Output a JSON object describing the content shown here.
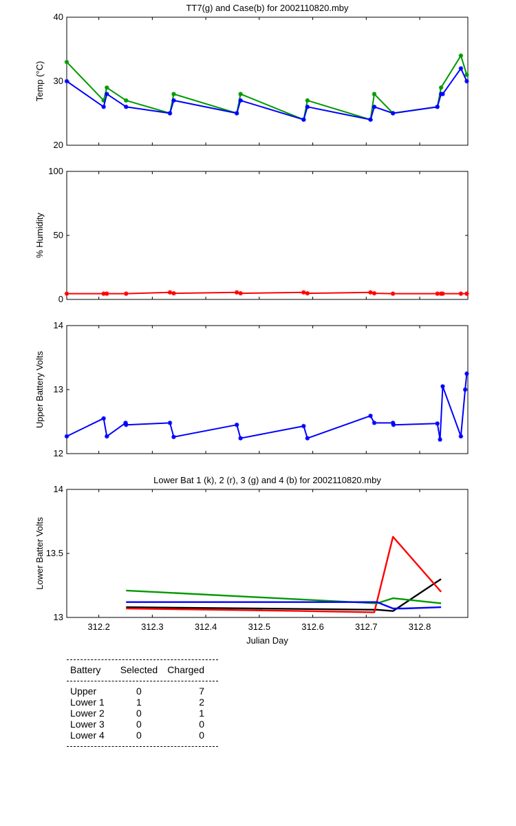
{
  "chart_data": [
    {
      "type": "line",
      "title": "TT7(g) and Case(b) for 2002110820.mby",
      "xlabel": "",
      "ylabel": "Temp  (°C)",
      "xlim": [
        312.14,
        312.89
      ],
      "ylim": [
        20,
        40
      ],
      "yticks": [
        "20",
        "30",
        "40"
      ],
      "x_tick_values": [
        312.2,
        312.3,
        312.4,
        312.5,
        312.6,
        312.7,
        312.8
      ],
      "series": [
        {
          "color": "#009900",
          "marker": "*",
          "x": [
            312.14,
            312.209,
            312.215,
            312.251,
            312.333,
            312.34,
            312.458,
            312.465,
            312.583,
            312.59,
            312.708,
            312.715,
            312.75,
            312.833,
            312.84,
            312.877,
            312.888
          ],
          "y": [
            33,
            27,
            29,
            27,
            25,
            28,
            25,
            28,
            24,
            27,
            24,
            28,
            25,
            26,
            29,
            34,
            31
          ]
        },
        {
          "color": "#0000ff",
          "marker": "*",
          "x": [
            312.14,
            312.209,
            312.215,
            312.251,
            312.333,
            312.34,
            312.458,
            312.465,
            312.583,
            312.59,
            312.708,
            312.715,
            312.75,
            312.833,
            312.84,
            312.843,
            312.877,
            312.888
          ],
          "y": [
            30,
            26,
            28,
            26,
            25,
            27,
            25,
            27,
            24,
            26,
            24,
            26,
            25,
            26,
            28,
            28,
            32,
            30
          ]
        }
      ]
    },
    {
      "type": "line",
      "title": "",
      "xlabel": "",
      "ylabel": "% Humidity",
      "xlim": [
        312.14,
        312.89
      ],
      "ylim": [
        0,
        100
      ],
      "yticks": [
        "0",
        "50",
        "100"
      ],
      "x_tick_values": [
        312.2,
        312.3,
        312.4,
        312.5,
        312.6,
        312.7,
        312.8
      ],
      "series": [
        {
          "color": "#ff0000",
          "marker": "*",
          "x": [
            312.14,
            312.209,
            312.215,
            312.251,
            312.333,
            312.34,
            312.458,
            312.465,
            312.583,
            312.59,
            312.708,
            312.715,
            312.75,
            312.833,
            312.84,
            312.843,
            312.877,
            312.888
          ],
          "y": [
            4.5,
            4.5,
            4.5,
            4.5,
            5.5,
            4.8,
            5.5,
            4.8,
            5.5,
            4.8,
            5.5,
            4.8,
            4.5,
            4.5,
            4.5,
            4.5,
            4.5,
            4.5
          ]
        }
      ]
    },
    {
      "type": "line",
      "title": "",
      "xlabel": "",
      "ylabel": "Upper Battery Volts",
      "xlim": [
        312.14,
        312.89
      ],
      "ylim": [
        12,
        14
      ],
      "yticks": [
        "12",
        "13",
        "14"
      ],
      "x_tick_values": [
        312.2,
        312.3,
        312.4,
        312.5,
        312.6,
        312.7,
        312.8
      ],
      "series": [
        {
          "color": "#0000ff",
          "marker": "*",
          "x": [
            312.14,
            312.209,
            312.215,
            312.25,
            312.251,
            312.333,
            312.34,
            312.458,
            312.465,
            312.583,
            312.59,
            312.708,
            312.715,
            312.75,
            312.751,
            312.833,
            312.838,
            312.843,
            312.877,
            312.885,
            312.888
          ],
          "y": [
            12.27,
            12.55,
            12.27,
            12.48,
            12.45,
            12.48,
            12.26,
            12.45,
            12.24,
            12.43,
            12.24,
            12.59,
            12.48,
            12.48,
            12.45,
            12.47,
            12.22,
            13.05,
            12.27,
            13.0,
            13.25
          ]
        }
      ]
    },
    {
      "type": "line",
      "title": "Lower Bat 1 (k), 2 (r), 3 (g) and 4 (b) for 2002110820.mby",
      "xlabel": "Julian Day",
      "ylabel": "Lower Batter Volts",
      "xlim": [
        312.14,
        312.89
      ],
      "ylim": [
        13,
        14
      ],
      "yticks": [
        "13",
        "13.5",
        "14"
      ],
      "xticks": [
        "312.2",
        "312.3",
        "312.4",
        "312.5",
        "312.6",
        "312.7",
        "312.8"
      ],
      "x_tick_values": [
        312.2,
        312.3,
        312.4,
        312.5,
        312.6,
        312.7,
        312.8
      ],
      "series": [
        {
          "color": "#000000",
          "x": [
            312.251,
            312.72,
            312.75,
            312.84
          ],
          "y": [
            13.08,
            13.06,
            13.05,
            13.3
          ]
        },
        {
          "color": "#ff0000",
          "x": [
            312.251,
            312.583,
            312.715,
            312.75,
            312.84
          ],
          "y": [
            13.07,
            13.05,
            13.04,
            13.63,
            13.2
          ]
        },
        {
          "color": "#009900",
          "x": [
            312.251,
            312.72,
            312.75,
            312.84
          ],
          "y": [
            13.21,
            13.11,
            13.15,
            13.11
          ]
        },
        {
          "color": "#0000ff",
          "x": [
            312.251,
            312.72,
            312.75,
            312.77,
            312.84
          ],
          "y": [
            13.12,
            13.12,
            13.07,
            13.07,
            13.08
          ]
        }
      ]
    }
  ],
  "table": {
    "headers": [
      "Battery",
      "Selected",
      "Charged"
    ],
    "rows": [
      [
        "Upper",
        "0",
        "7"
      ],
      [
        "Lower 1",
        "1",
        "2"
      ],
      [
        "Lower 2",
        "0",
        "1"
      ],
      [
        "Lower 3",
        "0",
        "0"
      ],
      [
        "Lower 4",
        "0",
        "0"
      ]
    ]
  }
}
